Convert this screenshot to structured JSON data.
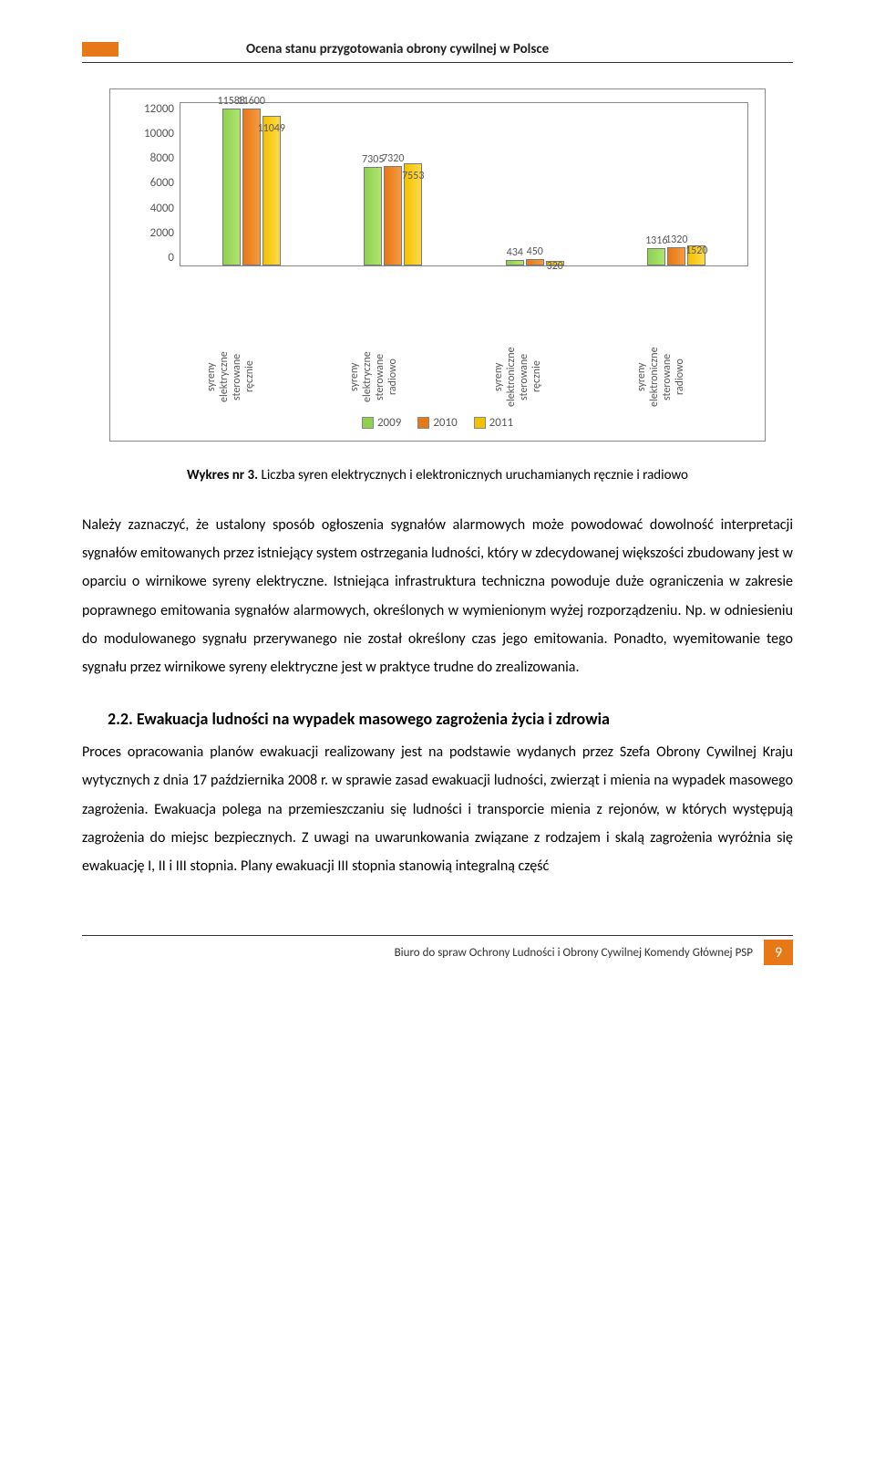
{
  "header_title": "Ocena stanu przygotowania obrony cywilnej w Polsce",
  "chart": {
    "type": "bar",
    "y_ticks": [
      "12000",
      "10000",
      "8000",
      "6000",
      "4000",
      "2000",
      "0"
    ],
    "ylim_max": 12000,
    "series_colors": [
      "#8fd14f",
      "#e67817",
      "#f2c200"
    ],
    "x_labels": [
      "syreny elektryczne sterowane ręcznie",
      "syreny elektryczne sterowane radiowo",
      "syreny elektroniczne sterowane ręcznie",
      "syreny elektroniczne sterowane radiowo"
    ],
    "groups": [
      {
        "vals": [
          11588,
          11600,
          11049
        ],
        "val_labels": [
          "11588",
          "11600",
          "11049"
        ]
      },
      {
        "vals": [
          7305,
          7320,
          7553
        ],
        "val_labels": [
          "7305",
          "7320",
          "7553"
        ]
      },
      {
        "vals": [
          434,
          450,
          320
        ],
        "val_labels": [
          "434",
          "450",
          "320"
        ]
      },
      {
        "vals": [
          1316,
          1320,
          1520
        ],
        "val_labels": [
          "1316",
          "1320",
          "1520"
        ]
      }
    ],
    "legend": [
      "2009",
      "2010",
      "2011"
    ],
    "border_color": "#888888",
    "tick_font": 13
  },
  "caption_label": "Wykres nr 3.",
  "caption_text": "Liczba syren elektrycznych i elektronicznych uruchamianych ręcznie i radiowo",
  "paragraph1": "Należy zaznaczyć, że ustalony sposób ogłoszenia sygnałów alarmowych może powodować dowolność interpretacji sygnałów emitowanych przez istniejący system ostrzegania ludności, który w zdecydowanej większości zbudowany jest w oparciu o wirnikowe syreny elektryczne. Istniejąca infrastruktura techniczna powoduje duże ograniczenia w zakresie poprawnego emitowania sygnałów alarmowych, określonych w wymienionym wyżej rozporządzeniu. Np. w odniesieniu do modulowanego sygnału przerywanego nie został określony czas jego emitowania. Ponadto, wyemitowanie tego sygnału przez wirnikowe syreny elektryczne jest w praktyce trudne do zrealizowania.",
  "section_heading": "2.2.  Ewakuacja ludności na wypadek masowego zagrożenia życia i zdrowia",
  "paragraph2": "Proces opracowania planów ewakuacji realizowany jest na podstawie wydanych przez Szefa Obrony Cywilnej Kraju wytycznych z dnia 17 października 2008 r. w sprawie zasad ewakuacji ludności, zwierząt i mienia na wypadek masowego zagrożenia. Ewakuacja polega na przemieszczaniu się ludności i transporcie mienia z rejonów, w których występują zagrożenia do miejsc bezpiecznych. Z uwagi na uwarunkowania związane z rodzajem i skalą zagrożenia wyróżnia się ewakuację I, II i III stopnia. Plany ewakuacji III stopnia stanowią integralną część",
  "footer_text": "Biuro do spraw Ochrony Ludności i Obrony Cywilnej Komendy Głównej PSP",
  "page_number": "9"
}
